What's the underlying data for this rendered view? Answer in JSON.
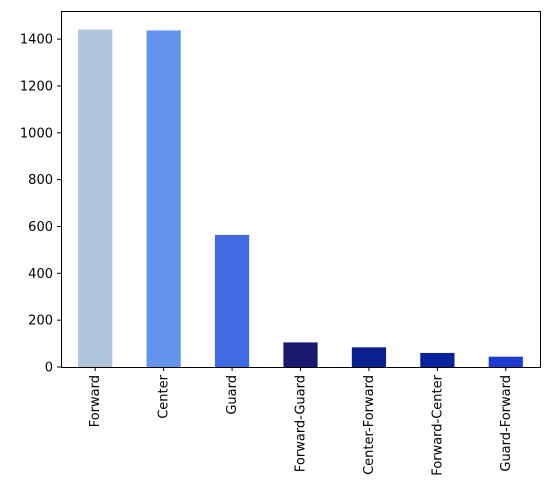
{
  "chart_data": {
    "type": "bar",
    "title": "",
    "xlabel": "",
    "ylabel": "",
    "categories": [
      "Forward",
      "Center",
      "Guard",
      "Forward-Guard",
      "Center-Forward",
      "Forward-Center",
      "Guard-Forward"
    ],
    "values": [
      1441,
      1437,
      564,
      105,
      84,
      60,
      44
    ],
    "colors": [
      "#b0c4de",
      "#6495ed",
      "#4169e1",
      "#191970",
      "#0a1f8f",
      "#06239b",
      "#1d3ccf"
    ],
    "ylim": [
      0,
      1520
    ],
    "yticks": [
      0,
      200,
      400,
      600,
      800,
      1000,
      1200,
      1400
    ],
    "grid": false,
    "legend": "none"
  }
}
